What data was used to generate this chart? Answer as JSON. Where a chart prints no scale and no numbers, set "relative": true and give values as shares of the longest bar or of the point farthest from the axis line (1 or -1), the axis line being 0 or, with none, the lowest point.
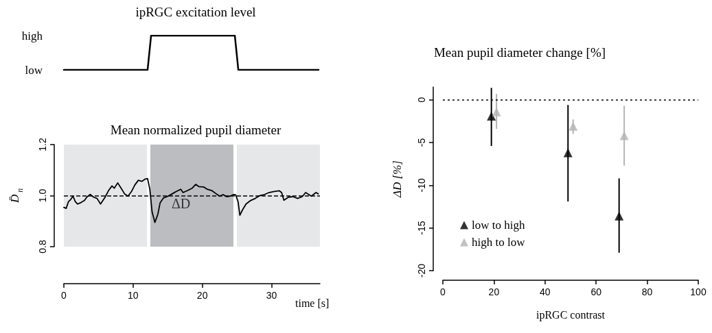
{
  "chart_data": [
    {
      "type": "line",
      "title": "ipRGC excitation level",
      "categories": [
        null,
        null,
        null,
        null,
        null,
        null,
        null,
        null,
        null,
        null,
        null,
        null,
        null,
        null,
        null,
        null,
        null,
        null,
        null,
        null,
        null,
        null,
        null,
        null,
        null,
        null,
        null,
        null,
        null,
        null,
        null,
        null,
        null,
        null,
        null,
        null,
        null,
        null,
        null,
        null,
        null,
        null,
        null,
        null,
        null,
        null,
        null,
        null,
        null,
        null,
        null,
        null,
        null,
        null,
        null,
        null,
        null,
        null,
        null,
        null,
        null,
        null,
        null,
        null,
        null,
        null,
        null,
        null,
        null,
        null,
        null,
        null,
        null,
        null
      ],
      "values": [
        0,
        0,
        0,
        0,
        0,
        0,
        0,
        0,
        0,
        0,
        0,
        0,
        0,
        0,
        0,
        0,
        0,
        0,
        0,
        0,
        0,
        0,
        0,
        0,
        0,
        1,
        1,
        1,
        1,
        1,
        1,
        1,
        1,
        1,
        1,
        1,
        1,
        1,
        1,
        1,
        1,
        1,
        1,
        1,
        1,
        1,
        1,
        1,
        1,
        1,
        0,
        0,
        0,
        0,
        0,
        0,
        0,
        0,
        0,
        0,
        0,
        0,
        0,
        0,
        0,
        0,
        0,
        0,
        0,
        0,
        0,
        0,
        0,
        0
      ],
      "color": "#000000",
      "relative": true,
      "annotations": [
        "high",
        "low"
      ],
      "marker": "none",
      "line_style": "solid"
    },
    {
      "type": "line",
      "title": "Mean normalized pupil diameter",
      "ylabel": "D̄$_{n}$",
      "xlabel": "time [s]",
      "color": "#000000",
      "marker": "none",
      "line_style": "solid",
      "x": [
        0,
        0.33,
        0.66,
        1.0,
        1.32,
        1.66,
        1.99,
        2.48,
        2.98,
        3.31,
        3.81,
        4.3,
        4.8,
        5.3,
        5.96,
        6.46,
        6.95,
        7.28,
        7.78,
        8.28,
        8.77,
        9.27,
        9.77,
        10.26,
        10.76,
        11.26,
        11.75,
        12.09,
        12.42,
        12.75,
        13.15,
        13.58,
        13.91,
        14.4,
        14.9,
        15.4,
        16.23,
        16.89,
        17.22,
        17.88,
        18.54,
        19.04,
        19.54,
        20.2,
        20.7,
        21.36,
        22.02,
        22.52,
        23.01,
        23.51,
        24.01,
        24.5,
        24.83,
        25.17,
        25.43,
        25.83,
        26.32,
        26.99,
        27.65,
        28.31,
        28.97,
        29.64,
        30.3,
        31.13,
        31.46,
        31.79,
        32.45,
        33.11,
        33.77,
        34.44,
        34.93,
        35.76,
        36.42,
        36.75
      ],
      "values": [
        0.954,
        0.95,
        0.976,
        0.985,
        0.998,
        0.976,
        0.967,
        0.973,
        0.981,
        0.994,
        1.005,
        0.994,
        0.989,
        0.967,
        0.994,
        1.02,
        1.038,
        1.029,
        1.05,
        1.029,
        1.007,
        0.998,
        1.016,
        1.042,
        1.06,
        1.056,
        1.065,
        1.067,
        1.025,
        0.936,
        0.895,
        0.927,
        0.972,
        0.991,
        0.996,
        1.003,
        1.016,
        1.025,
        1.012,
        1.02,
        1.029,
        1.044,
        1.035,
        1.034,
        1.025,
        1.02,
        1.007,
        0.998,
        1.004,
        0.996,
        0.998,
        1.004,
        1.003,
        0.976,
        0.923,
        0.945,
        0.967,
        0.981,
        0.989,
        1.0,
        1.004,
        1.012,
        1.016,
        1.019,
        1.012,
        0.982,
        0.994,
        0.996,
        0.989,
        0.996,
        1.012,
        0.998,
        1.012,
        1.007
      ],
      "xlim": [
        0,
        37
      ],
      "xticks": [
        0,
        10,
        20,
        30
      ],
      "ylim": [
        0.8,
        1.2
      ],
      "yticks": [
        0.8,
        {
          "value": 1,
          "label": "1.0"
        },
        1.2
      ],
      "ref_lines": [
        {
          "axis": "y",
          "value": 1,
          "color": "#000000",
          "line_style": "dashed"
        }
      ],
      "bands": [
        {
          "axis": "x",
          "from": 0,
          "to": 12,
          "color": "#e6e7e8"
        },
        {
          "axis": "x",
          "from": 12.5,
          "to": 24.5,
          "color": "#bcbdc0"
        },
        {
          "axis": "x",
          "from": 25,
          "to": 37,
          "color": "#e6e7e8"
        }
      ],
      "annotations": [
        "ΔD"
      ]
    },
    {
      "type": "scatter",
      "title": "Mean pupil diameter change [%]",
      "ylabel": "ΔD [%]",
      "xlabel": "ipRGC contrast",
      "marker": "triangle",
      "legend": "bottom left",
      "series": [
        {
          "name": "low to high",
          "color": "#000000",
          "x": [
            19,
            49,
            69
          ],
          "values": [
            -1.9,
            -6.2,
            -13.6
          ],
          "errors": [
            [
              -5.4,
              1.4
            ],
            [
              -11.9,
              -0.6
            ],
            [
              -17.9,
              -9.2
            ]
          ]
        },
        {
          "name": "high to low",
          "color": "#b3b3b3",
          "x": [
            21,
            51,
            71
          ],
          "values": [
            -1.4,
            -3.1,
            -4.2
          ],
          "errors": [
            [
              -3.4,
              0.7
            ],
            [
              -4.0,
              -2.3
            ],
            [
              -7.7,
              -0.7
            ]
          ]
        }
      ],
      "xlim": [
        0,
        100
      ],
      "xticks": [
        0,
        20,
        40,
        60,
        80,
        100
      ],
      "ylim": [
        -20,
        1.5
      ],
      "yticks": [
        -20,
        -15,
        -10,
        -5,
        0
      ],
      "ref_lines": [
        {
          "axis": "y",
          "value": 0,
          "color": "#000000",
          "line_style": "dotted"
        }
      ]
    }
  ]
}
